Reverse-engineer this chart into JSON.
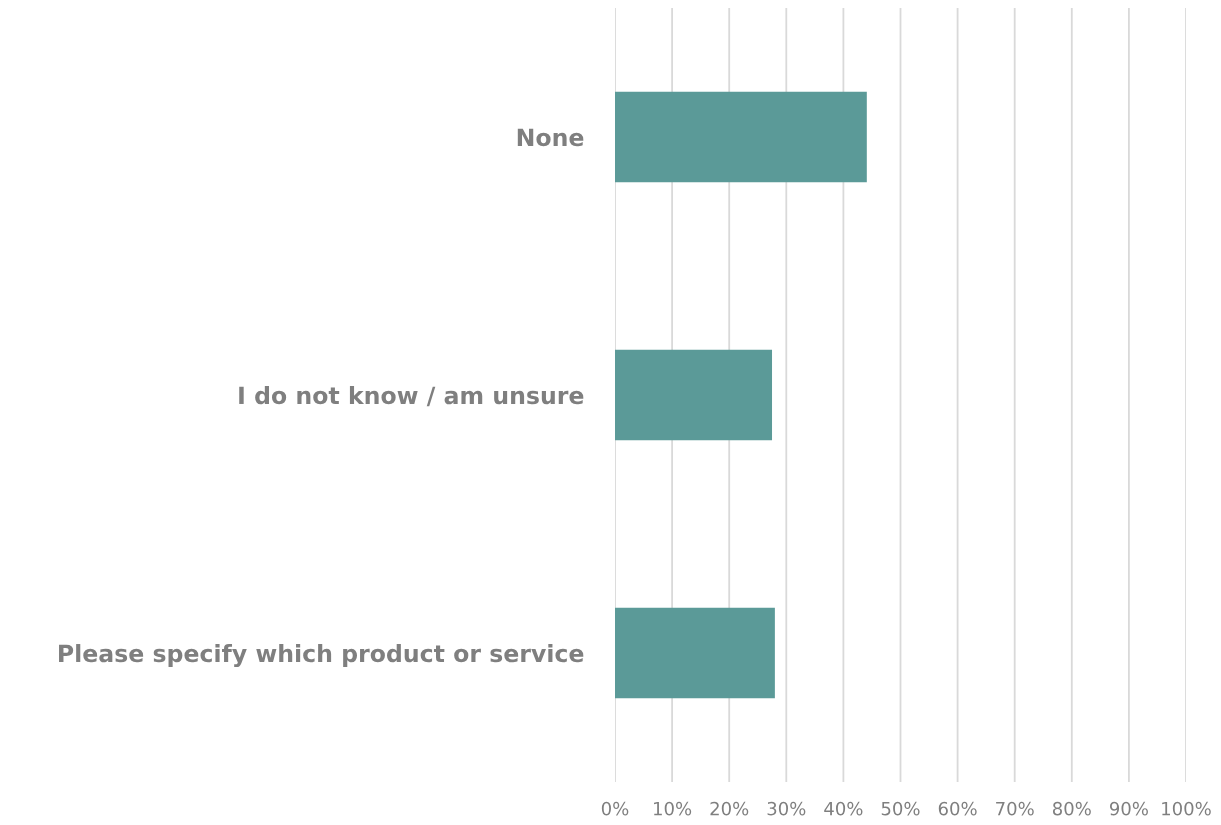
{
  "chart_data": {
    "type": "bar",
    "orientation": "horizontal",
    "categories": [
      "None",
      "I do not know / am unsure",
      "Please specify which product or service"
    ],
    "values": [
      44.1,
      27.5,
      28.0
    ],
    "color": "#5b9a98",
    "xlim": [
      0,
      100
    ],
    "xticks": [
      {
        "value": 0,
        "label": "0%"
      },
      {
        "value": 10,
        "label": "10%"
      },
      {
        "value": 20,
        "label": "20%"
      },
      {
        "value": 30,
        "label": "30%"
      },
      {
        "value": 40,
        "label": "40%"
      },
      {
        "value": 50,
        "label": "50%"
      },
      {
        "value": 60,
        "label": "60%"
      },
      {
        "value": 70,
        "label": "70%"
      },
      {
        "value": 80,
        "label": "80%"
      },
      {
        "value": 90,
        "label": "90%"
      },
      {
        "value": 100,
        "label": "100%"
      }
    ],
    "grid": "x"
  }
}
